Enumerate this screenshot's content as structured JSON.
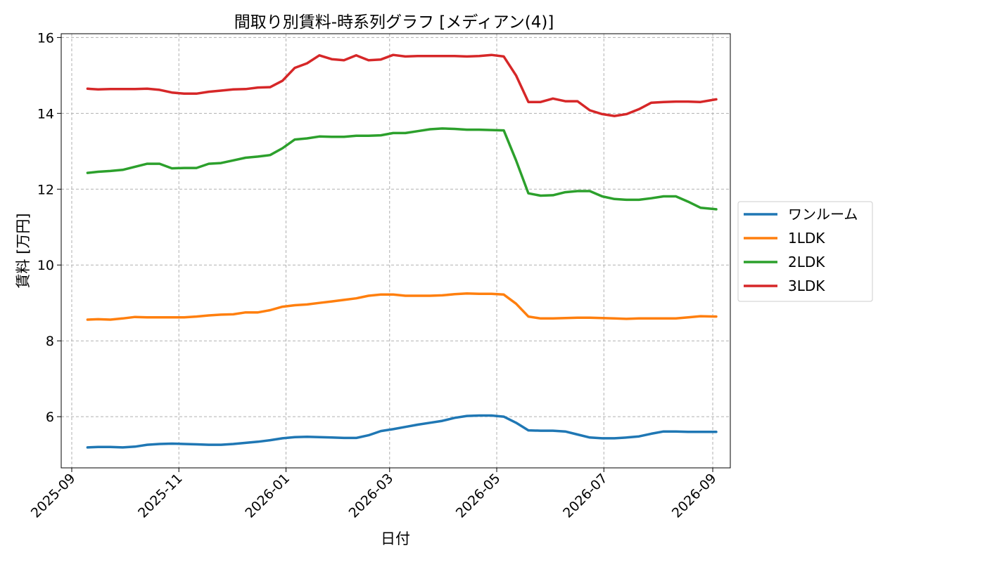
{
  "chart_data": {
    "type": "line",
    "title": "間取り別賃料-時系列グラフ [メディアン(4)]",
    "xlabel": "日付",
    "ylabel": "賃料 [万円]",
    "ylim": [
      4.65,
      16.1
    ],
    "xlim": [
      "2025-08-26",
      "2026-09-11"
    ],
    "x_ticks": [
      "2025-09-01",
      "2025-11-01",
      "2026-01-01",
      "2026-03-01",
      "2026-05-01",
      "2026-07-01",
      "2026-09-01"
    ],
    "x_tick_labels": [
      "2025-09",
      "2025-11",
      "2026-01",
      "2026-03",
      "2026-05",
      "2026-07",
      "2026-09"
    ],
    "y_ticks": [
      6,
      8,
      10,
      12,
      14,
      16
    ],
    "y_tick_labels": [
      "6",
      "8",
      "10",
      "12",
      "14",
      "16"
    ],
    "grid": true,
    "legend_position": "right, outside plot",
    "x": [
      "2025-09-10",
      "2025-09-16",
      "2025-09-23",
      "2025-09-30",
      "2025-10-07",
      "2025-10-14",
      "2025-10-21",
      "2025-10-28",
      "2025-11-04",
      "2025-11-11",
      "2025-11-18",
      "2025-11-25",
      "2025-12-02",
      "2025-12-09",
      "2025-12-16",
      "2025-12-23",
      "2025-12-30",
      "2026-01-06",
      "2026-01-13",
      "2026-01-20",
      "2026-01-27",
      "2026-02-03",
      "2026-02-10",
      "2026-02-17",
      "2026-02-24",
      "2026-03-03",
      "2026-03-10",
      "2026-03-17",
      "2026-03-24",
      "2026-03-31",
      "2026-04-07",
      "2026-04-14",
      "2026-04-21",
      "2026-04-28",
      "2026-05-05",
      "2026-05-12",
      "2026-05-19",
      "2026-05-26",
      "2026-06-02",
      "2026-06-09",
      "2026-06-16",
      "2026-06-23",
      "2026-06-30",
      "2026-07-07",
      "2026-07-14",
      "2026-07-21",
      "2026-07-28",
      "2026-08-04",
      "2026-08-11",
      "2026-08-18",
      "2026-08-25",
      "2026-09-03"
    ],
    "series": [
      {
        "name": "ワンルーム",
        "color": "#1f77b4",
        "values": [
          5.19,
          5.2,
          5.2,
          5.19,
          5.21,
          5.26,
          5.28,
          5.29,
          5.28,
          5.27,
          5.26,
          5.26,
          5.28,
          5.31,
          5.34,
          5.38,
          5.43,
          5.46,
          5.47,
          5.46,
          5.45,
          5.44,
          5.44,
          5.51,
          5.62,
          5.67,
          5.73,
          5.79,
          5.84,
          5.89,
          5.97,
          6.02,
          6.03,
          6.03,
          6.0,
          5.84,
          5.64,
          5.63,
          5.63,
          5.61,
          5.53,
          5.45,
          5.43,
          5.43,
          5.45,
          5.48,
          5.55,
          5.61,
          5.61,
          5.6,
          5.6,
          5.6
        ]
      },
      {
        "name": "1LDK",
        "color": "#ff7f0e",
        "values": [
          8.56,
          8.57,
          8.56,
          8.59,
          8.63,
          8.62,
          8.62,
          8.62,
          8.62,
          8.64,
          8.67,
          8.69,
          8.7,
          8.75,
          8.75,
          8.81,
          8.9,
          8.94,
          8.96,
          9.0,
          9.04,
          9.08,
          9.12,
          9.19,
          9.22,
          9.22,
          9.19,
          9.19,
          9.19,
          9.2,
          9.23,
          9.25,
          9.24,
          9.24,
          9.22,
          8.98,
          8.64,
          8.59,
          8.59,
          8.6,
          8.61,
          8.61,
          8.6,
          8.59,
          8.58,
          8.59,
          8.59,
          8.59,
          8.59,
          8.62,
          8.65,
          8.64
        ]
      },
      {
        "name": "2LDK",
        "color": "#2ca02c",
        "values": [
          12.43,
          12.46,
          12.48,
          12.51,
          12.59,
          12.67,
          12.67,
          12.55,
          12.56,
          12.56,
          12.67,
          12.69,
          12.76,
          12.83,
          12.86,
          12.9,
          13.08,
          13.31,
          13.34,
          13.39,
          13.38,
          13.38,
          13.41,
          13.41,
          13.42,
          13.48,
          13.48,
          13.53,
          13.58,
          13.6,
          13.59,
          13.57,
          13.57,
          13.56,
          13.55,
          12.76,
          11.89,
          11.83,
          11.84,
          11.92,
          11.95,
          11.95,
          11.81,
          11.74,
          11.72,
          11.72,
          11.76,
          11.81,
          11.81,
          11.67,
          11.51,
          11.47
        ]
      },
      {
        "name": "3LDK",
        "color": "#d62728",
        "values": [
          14.65,
          14.63,
          14.64,
          14.64,
          14.64,
          14.65,
          14.62,
          14.55,
          14.52,
          14.52,
          14.57,
          14.6,
          14.63,
          14.64,
          14.68,
          14.69,
          14.86,
          15.2,
          15.32,
          15.53,
          15.43,
          15.4,
          15.53,
          15.4,
          15.42,
          15.54,
          15.5,
          15.51,
          15.51,
          15.51,
          15.51,
          15.5,
          15.51,
          15.54,
          15.5,
          15.0,
          14.3,
          14.3,
          14.39,
          14.32,
          14.32,
          14.08,
          13.98,
          13.93,
          13.98,
          14.11,
          14.28,
          14.3,
          14.31,
          14.31,
          14.3,
          14.37
        ]
      }
    ]
  }
}
